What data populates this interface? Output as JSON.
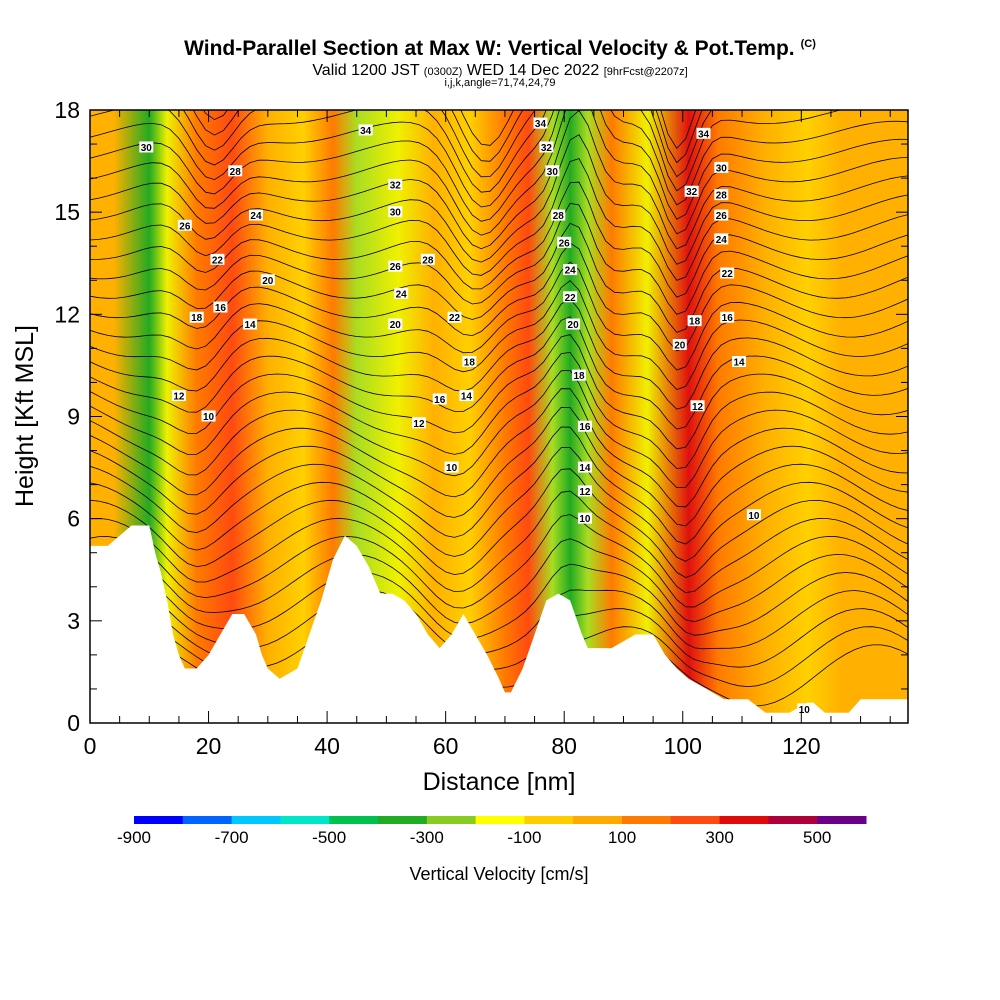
{
  "title": {
    "main": "Wind-Parallel Section at Max W: Vertical Velocity & Pot.Temp.",
    "copyright": "(C)",
    "valid_prefix": "Valid 1200 JST",
    "valid_utc": "(0300Z)",
    "valid_date": "WED 14 Dec 2022",
    "forecast": "[9hrFcst@2207z]",
    "indices": "i,j,k,angle=71,74,24,79"
  },
  "chart_data": {
    "type": "heatmap",
    "xlabel": "Distance [nm]",
    "ylabel": "Height [Kft MSL]",
    "xlim": [
      0,
      138
    ],
    "ylim": [
      0,
      18
    ],
    "x_ticks": [
      "0",
      "20",
      "40",
      "60",
      "80",
      "100",
      "120"
    ],
    "y_ticks": [
      "0",
      "3",
      "6",
      "9",
      "12",
      "15",
      "18"
    ],
    "terrain_top_kft": [
      [
        0,
        5.2
      ],
      [
        3,
        5.2
      ],
      [
        5,
        5.5
      ],
      [
        7,
        5.8
      ],
      [
        10,
        5.8
      ],
      [
        11,
        5.0
      ],
      [
        12,
        4.4
      ],
      [
        13,
        3.6
      ],
      [
        14,
        2.6
      ],
      [
        15,
        2.0
      ],
      [
        16,
        1.6
      ],
      [
        18,
        1.6
      ],
      [
        20,
        2.0
      ],
      [
        22,
        2.6
      ],
      [
        24,
        3.2
      ],
      [
        26,
        3.2
      ],
      [
        28,
        2.6
      ],
      [
        29,
        2.0
      ],
      [
        30,
        1.6
      ],
      [
        32,
        1.3
      ],
      [
        35,
        1.6
      ],
      [
        37,
        2.6
      ],
      [
        39,
        3.6
      ],
      [
        41,
        4.8
      ],
      [
        43,
        5.5
      ],
      [
        45,
        5.2
      ],
      [
        47,
        4.6
      ],
      [
        49,
        3.8
      ],
      [
        51,
        3.8
      ],
      [
        53,
        3.6
      ],
      [
        55,
        3.2
      ],
      [
        57,
        2.6
      ],
      [
        59,
        2.2
      ],
      [
        61,
        2.6
      ],
      [
        63,
        3.2
      ],
      [
        65,
        2.6
      ],
      [
        67,
        2.0
      ],
      [
        69,
        1.3
      ],
      [
        70,
        0.9
      ],
      [
        71,
        0.9
      ],
      [
        73,
        1.6
      ],
      [
        75,
        2.6
      ],
      [
        77,
        3.6
      ],
      [
        79,
        3.8
      ],
      [
        81,
        3.6
      ],
      [
        83,
        2.6
      ],
      [
        84,
        2.2
      ],
      [
        88,
        2.2
      ],
      [
        92,
        2.6
      ],
      [
        95,
        2.6
      ],
      [
        97,
        2.0
      ],
      [
        99,
        1.6
      ],
      [
        101,
        1.3
      ],
      [
        104,
        1.0
      ],
      [
        107,
        0.7
      ],
      [
        111,
        0.7
      ],
      [
        114,
        0.3
      ],
      [
        118,
        0.3
      ],
      [
        121,
        0.6
      ],
      [
        122,
        0.6
      ],
      [
        124,
        0.3
      ],
      [
        128,
        0.3
      ],
      [
        130,
        0.7
      ],
      [
        138,
        0.7
      ]
    ],
    "w_bands_cm_s": [
      {
        "x_center": 4,
        "w": 100
      },
      {
        "x_center": 10,
        "w": -400
      },
      {
        "x_center": 13,
        "w": -100
      },
      {
        "x_center": 18,
        "w": 200
      },
      {
        "x_center": 24,
        "w": 300
      },
      {
        "x_center": 30,
        "w": 100
      },
      {
        "x_center": 36,
        "w": 0
      },
      {
        "x_center": 41,
        "w": 200
      },
      {
        "x_center": 45,
        "w": -200
      },
      {
        "x_center": 52,
        "w": -100
      },
      {
        "x_center": 58,
        "w": 100
      },
      {
        "x_center": 64,
        "w": 0
      },
      {
        "x_center": 70,
        "w": 200
      },
      {
        "x_center": 74,
        "w": 350
      },
      {
        "x_center": 78,
        "w": -200
      },
      {
        "x_center": 81,
        "w": -450
      },
      {
        "x_center": 84,
        "w": -200
      },
      {
        "x_center": 88,
        "w": 200
      },
      {
        "x_center": 94,
        "w": -100
      },
      {
        "x_center": 101,
        "w": 400
      },
      {
        "x_center": 106,
        "w": 200
      },
      {
        "x_center": 114,
        "w": 100
      },
      {
        "x_center": 121,
        "w": 0
      },
      {
        "x_center": 127,
        "w": 150
      },
      {
        "x_center": 135,
        "w": 100
      }
    ],
    "theta_contours": {
      "labels": [
        {
          "text": "30",
          "x": 9.5,
          "y": 16.9
        },
        {
          "text": "28",
          "x": 24.5,
          "y": 16.2
        },
        {
          "text": "26",
          "x": 16,
          "y": 14.6
        },
        {
          "text": "24",
          "x": 28,
          "y": 14.9
        },
        {
          "text": "22",
          "x": 21.5,
          "y": 13.6
        },
        {
          "text": "20",
          "x": 30,
          "y": 13.0
        },
        {
          "text": "18",
          "x": 18,
          "y": 11.9
        },
        {
          "text": "16",
          "x": 22,
          "y": 12.2
        },
        {
          "text": "14",
          "x": 27,
          "y": 11.7
        },
        {
          "text": "12",
          "x": 15,
          "y": 9.6
        },
        {
          "text": "10",
          "x": 20,
          "y": 9.0
        },
        {
          "text": "34",
          "x": 46.5,
          "y": 17.4
        },
        {
          "text": "32",
          "x": 51.5,
          "y": 15.8
        },
        {
          "text": "30",
          "x": 51.5,
          "y": 15.0
        },
        {
          "text": "26",
          "x": 51.5,
          "y": 13.4
        },
        {
          "text": "28",
          "x": 57,
          "y": 13.6
        },
        {
          "text": "24",
          "x": 52.5,
          "y": 12.6
        },
        {
          "text": "20",
          "x": 51.5,
          "y": 11.7
        },
        {
          "text": "22",
          "x": 61.5,
          "y": 11.9
        },
        {
          "text": "18",
          "x": 64,
          "y": 10.6
        },
        {
          "text": "16",
          "x": 59,
          "y": 9.5
        },
        {
          "text": "14",
          "x": 63.5,
          "y": 9.6
        },
        {
          "text": "12",
          "x": 55.5,
          "y": 8.8
        },
        {
          "text": "10",
          "x": 61,
          "y": 7.5
        },
        {
          "text": "34",
          "x": 76,
          "y": 17.6
        },
        {
          "text": "32",
          "x": 77,
          "y": 16.9
        },
        {
          "text": "30",
          "x": 78,
          "y": 16.2
        },
        {
          "text": "28",
          "x": 79,
          "y": 14.9
        },
        {
          "text": "26",
          "x": 80,
          "y": 14.1
        },
        {
          "text": "24",
          "x": 81,
          "y": 13.3
        },
        {
          "text": "22",
          "x": 81,
          "y": 12.5
        },
        {
          "text": "20",
          "x": 81.5,
          "y": 11.7
        },
        {
          "text": "18",
          "x": 82.5,
          "y": 10.2
        },
        {
          "text": "16",
          "x": 83.5,
          "y": 8.7
        },
        {
          "text": "14",
          "x": 83.5,
          "y": 7.5
        },
        {
          "text": "12",
          "x": 83.5,
          "y": 6.8
        },
        {
          "text": "10",
          "x": 83.5,
          "y": 6.0
        },
        {
          "text": "34",
          "x": 103.5,
          "y": 17.3
        },
        {
          "text": "32",
          "x": 101.5,
          "y": 15.6
        },
        {
          "text": "30",
          "x": 106.5,
          "y": 16.3
        },
        {
          "text": "28",
          "x": 106.5,
          "y": 15.5
        },
        {
          "text": "26",
          "x": 106.5,
          "y": 14.9
        },
        {
          "text": "24",
          "x": 106.5,
          "y": 14.2
        },
        {
          "text": "22",
          "x": 107.5,
          "y": 13.2
        },
        {
          "text": "20",
          "x": 99.5,
          "y": 11.1
        },
        {
          "text": "18",
          "x": 102,
          "y": 11.8
        },
        {
          "text": "16",
          "x": 107.5,
          "y": 11.9
        },
        {
          "text": "14",
          "x": 109.5,
          "y": 10.6
        },
        {
          "text": "12",
          "x": 102.5,
          "y": 9.3
        },
        {
          "text": "10",
          "x": 112,
          "y": 6.1
        },
        {
          "text": "10",
          "x": 120.5,
          "y": 0.4
        }
      ]
    },
    "colorbar": {
      "label": "Vertical Velocity [cm/s]",
      "tick_labels": [
        "-900",
        "-700",
        "-500",
        "-300",
        "-100",
        "100",
        "300",
        "500"
      ],
      "colors": [
        "#0000ff",
        "#0064ff",
        "#00c8ff",
        "#00e6c8",
        "#00c050",
        "#22aa22",
        "#88cc22",
        "#ffff00",
        "#ffcc00",
        "#ffaa00",
        "#ff7a00",
        "#ff4a10",
        "#e00a0a",
        "#b0003a",
        "#6a0088"
      ]
    }
  }
}
